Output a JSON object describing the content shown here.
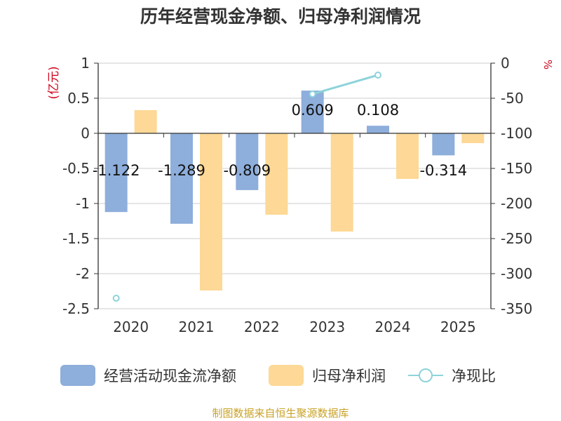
{
  "title": "历年经营现金净额、归母净利润情况",
  "left_axis_unit": "(亿元)",
  "right_axis_unit": "%",
  "footer": "制图数据来自恒生聚源数据库",
  "colors": {
    "cash_flow": "#8eaedb",
    "net_profit": "#fdd896",
    "ratio": "#8dd3da",
    "unit_label": "#d0021b",
    "footer": "#c9a227"
  },
  "legend": [
    {
      "name": "经营活动现金流净额",
      "icon": "rounded-rect-swatch"
    },
    {
      "name": "归母净利润",
      "icon": "rounded-rect-swatch"
    },
    {
      "name": "净现比",
      "icon": "line-circle-marker"
    }
  ],
  "chart_data": {
    "type": "bar",
    "categories": [
      "2020",
      "2021",
      "2022",
      "2023",
      "2024",
      "2025"
    ],
    "left_axis": {
      "ylim": [
        -2.5,
        1
      ],
      "ticks": [
        "1",
        "0.5",
        "0",
        "-0.5",
        "-1",
        "-1.5",
        "-2",
        "-2.5"
      ]
    },
    "right_axis": {
      "ylim": [
        -350,
        0
      ],
      "ticks": [
        "0",
        "-50",
        "-100",
        "-150",
        "-200",
        "-250",
        "-300",
        "-350"
      ]
    },
    "grid": true,
    "legend_position": "bottom",
    "series": [
      {
        "name": "经营活动现金流净额",
        "type": "bar",
        "axis": "left",
        "values": [
          -1.122,
          -1.289,
          -0.809,
          0.609,
          0.108,
          -0.314
        ],
        "labels": [
          "-1.122",
          "-1.289",
          "-0.809",
          "0.609",
          "0.108",
          "-0.314"
        ]
      },
      {
        "name": "归母净利润",
        "type": "bar",
        "axis": "left",
        "values": [
          0.33,
          -2.24,
          -1.16,
          -1.4,
          -0.65,
          -0.14
        ]
      },
      {
        "name": "净现比",
        "type": "line",
        "axis": "right",
        "values": [
          -335,
          null,
          null,
          -44,
          -17,
          null
        ]
      }
    ]
  }
}
